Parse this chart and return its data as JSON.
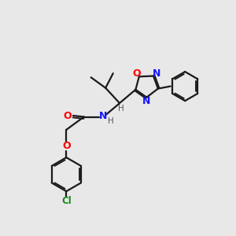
{
  "bg_color": "#e8e8e8",
  "bond_color": "#1a1a1a",
  "N_color": "#1414ff",
  "O_color": "#ff0000",
  "Cl_color": "#1a8a1a",
  "H_color": "#555555",
  "figsize": [
    3.0,
    3.0
  ],
  "dpi": 100,
  "xlim": [
    0,
    10
  ],
  "ylim": [
    0,
    10
  ]
}
